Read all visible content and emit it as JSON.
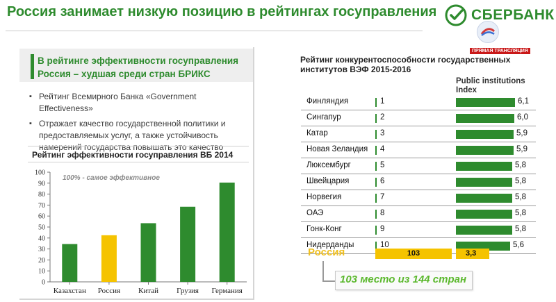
{
  "header": {
    "title": "Россия занимает низкую позицию в рейтингах госуправления",
    "logo_text": "СБЕРБАНК",
    "live_badge": "ПРЯМАЯ ТРАНСЛЯЦИЯ"
  },
  "left": {
    "subhead": "В рейтинге эффективности госуправления Россия – худшая среди стран БРИКС",
    "bullets": [
      "Рейтинг Всемирного Банка «Government Effectiveness»",
      "Отражает качество государственной политики и предоставляемых услуг, а также устойчивость намерений государства повышать это качество"
    ]
  },
  "right": {
    "title": "Рейтинг конкурентоспособности государственных институтов ВЭФ 2015-2016",
    "column_header": "Public institutions Index",
    "rows": [
      {
        "country": "Финляндия",
        "rank": "1",
        "index": "6,1"
      },
      {
        "country": "Сингапур",
        "rank": "2",
        "index": "6,0"
      },
      {
        "country": "Катар",
        "rank": "3",
        "index": "5,9"
      },
      {
        "country": "Новая Зеландия",
        "rank": "4",
        "index": "5,9"
      },
      {
        "country": "Люксембург",
        "rank": "5",
        "index": "5,8"
      },
      {
        "country": "Швейцария",
        "rank": "6",
        "index": "5,8"
      },
      {
        "country": "Норвегия",
        "rank": "7",
        "index": "5,8"
      },
      {
        "country": "ОАЭ",
        "rank": "8",
        "index": "5,8"
      },
      {
        "country": "Гонк-Конг",
        "rank": "9",
        "index": "5,8"
      },
      {
        "country": "Нидерданды",
        "rank": "10",
        "index": "5,6"
      }
    ],
    "russia": {
      "country": "Россия",
      "rank": "103",
      "index": "3,3"
    },
    "place_text": "103 место из 144 стран"
  },
  "colors": {
    "green": "#2e8b2e",
    "yellow": "#f5c300",
    "light_green": "#5bb82d"
  },
  "chart_data": [
    {
      "type": "bar",
      "title": "Рейтинг эффективности госуправления ВБ 2014",
      "categories": [
        "Казахстан",
        "Россия",
        "Китай",
        "Грузия",
        "Германия"
      ],
      "values": [
        34.5,
        42.5,
        53.5,
        68.5,
        90.5
      ],
      "bar_colors": [
        "#2e8b2e",
        "#f5c300",
        "#2e8b2e",
        "#2e8b2e",
        "#2e8b2e"
      ],
      "ylim": [
        0,
        100
      ],
      "yticks": [
        "0",
        "10",
        "20",
        "30",
        "40",
        "50",
        "60",
        "70",
        "80",
        "90",
        "100"
      ],
      "annotation": "100% - самое эффективное",
      "grid": false
    },
    {
      "type": "bar",
      "title": "Рейтинг конкурентоспособности государственных институтов ВЭФ 2015-2016",
      "categories": [
        "Финляндия",
        "Сингапур",
        "Катар",
        "Новая Зеландия",
        "Люксембург",
        "Швейцария",
        "Норвегия",
        "ОАЭ",
        "Гонк-Конг",
        "Нидерданды",
        "Россия"
      ],
      "series": [
        {
          "name": "Public institutions Index",
          "values": [
            6.1,
            6.0,
            5.9,
            5.9,
            5.8,
            5.8,
            5.8,
            5.8,
            5.8,
            5.6,
            3.3
          ]
        }
      ],
      "ranks": [
        1,
        2,
        3,
        4,
        5,
        6,
        7,
        8,
        9,
        10,
        103
      ]
    }
  ]
}
